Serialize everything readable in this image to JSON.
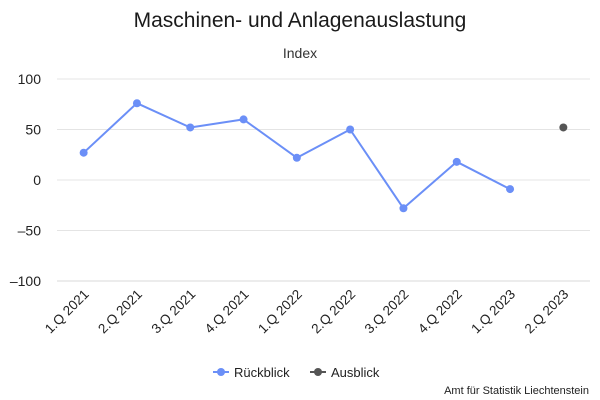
{
  "chart_data": {
    "type": "line",
    "title": "Maschinen- und Anlagenauslastung",
    "ylabel": "Index",
    "xlabel": "",
    "categories": [
      "1.Q 2021",
      "2.Q 2021",
      "3.Q 2021",
      "4.Q 2021",
      "1.Q 2022",
      "2.Q 2022",
      "3.Q 2022",
      "4.Q 2022",
      "1.Q 2023",
      "2.Q 2023"
    ],
    "ylim": [
      -100,
      100
    ],
    "yticks": [
      100,
      50,
      0,
      -50,
      -100
    ],
    "grid": true,
    "legend_position": "bottom",
    "series": [
      {
        "name": "Rückblick",
        "color": "#6b8ff7",
        "values": [
          27,
          76,
          52,
          60,
          22,
          50,
          -28,
          18,
          -9,
          null
        ]
      },
      {
        "name": "Ausblick",
        "color": "#555555",
        "values": [
          null,
          null,
          null,
          null,
          null,
          null,
          null,
          null,
          null,
          52
        ]
      }
    ],
    "credit": "Amt für Statistik Liechtenstein"
  }
}
